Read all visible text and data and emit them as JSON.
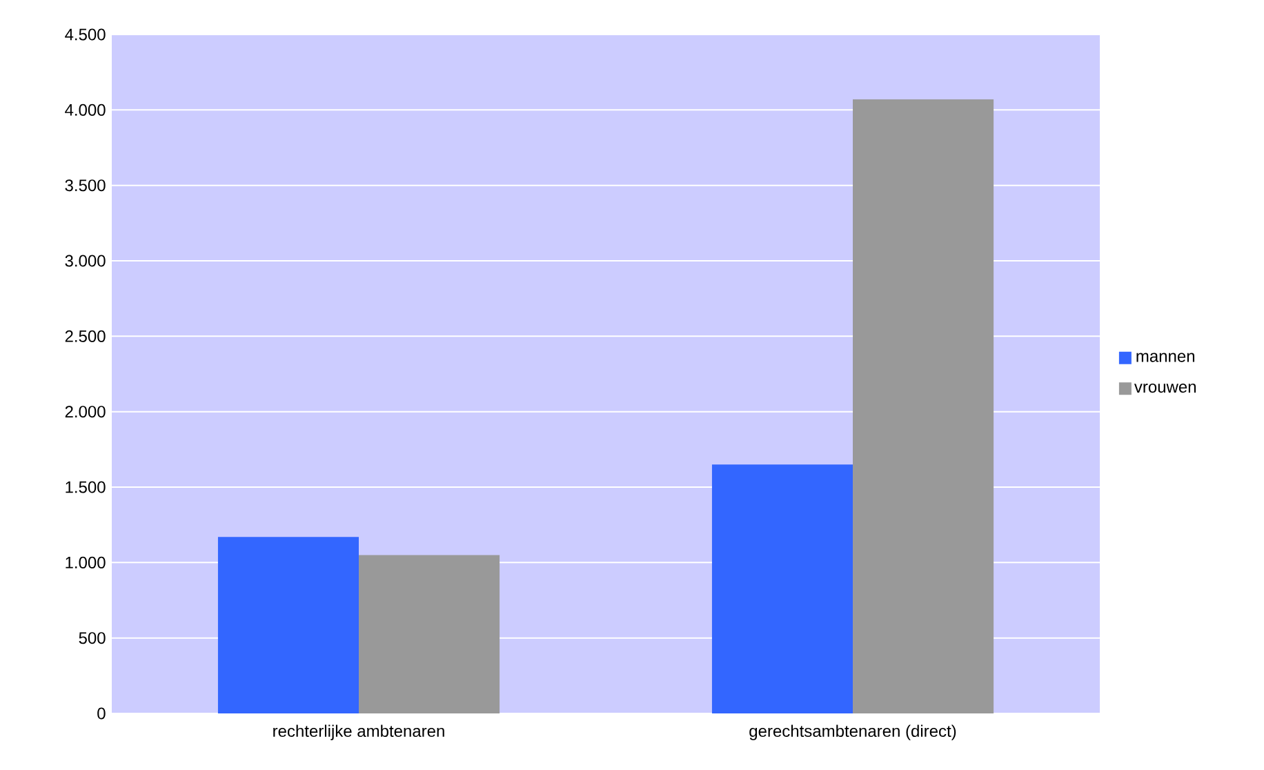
{
  "chart_data": {
    "type": "bar",
    "categories": [
      "rechterlijke ambtenaren",
      "gerechtsambtenaren (direct)"
    ],
    "series": [
      {
        "name": "mannen",
        "color": "#3366ff",
        "values": [
          1170,
          1650
        ]
      },
      {
        "name": "vrouwen",
        "color": "#999999",
        "values": [
          1050,
          4070
        ]
      }
    ],
    "ylim": [
      0,
      4500
    ],
    "yticks": [
      0,
      500,
      {
        "value": 1000,
        "label": "1.000"
      },
      {
        "value": 1500,
        "label": "1.500"
      },
      {
        "value": 2000,
        "label": "2.000"
      },
      {
        "value": 2500,
        "label": "2.500"
      },
      {
        "value": 3000,
        "label": "3.000"
      },
      {
        "value": 3500,
        "label": "3.500"
      },
      {
        "value": 4000,
        "label": "4.000"
      },
      {
        "value": 4500,
        "label": "4.500"
      }
    ],
    "grid": "y",
    "legend": "right"
  }
}
